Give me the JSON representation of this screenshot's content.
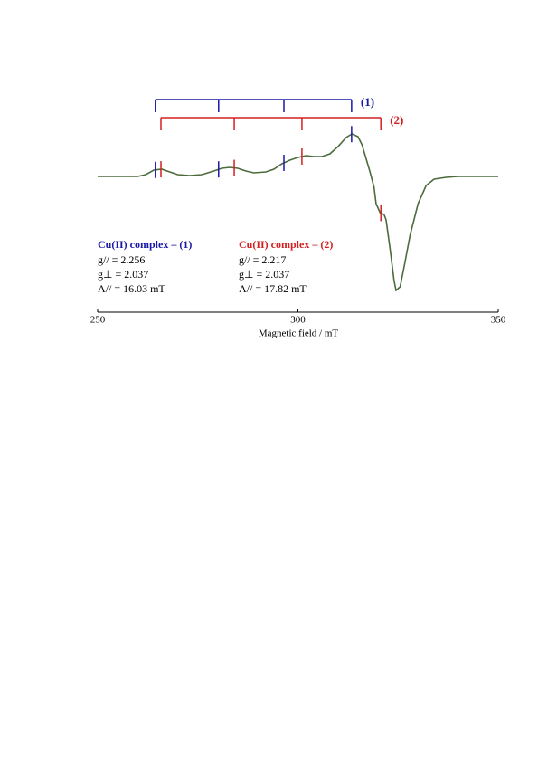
{
  "chart_data": {
    "type": "line",
    "xlabel": "Magnetic field / mT",
    "xlim": [
      250,
      350
    ],
    "xticks": [
      250,
      300,
      350
    ],
    "ylim": [
      -135,
      60
    ],
    "color": "#4b6b3c",
    "x": [
      250,
      255,
      260,
      262,
      264,
      266,
      268,
      270,
      273,
      276,
      279,
      281,
      283,
      285,
      287,
      289,
      292,
      294,
      296,
      298,
      300,
      302,
      304,
      306,
      308,
      310,
      312,
      313.5,
      315,
      316,
      317,
      318,
      319,
      319.5,
      320.5,
      321.5,
      322,
      323,
      324,
      324.5,
      325.5,
      326.5,
      328,
      330,
      332,
      334,
      337,
      340,
      345,
      350
    ],
    "values": [
      0,
      0,
      0,
      2,
      7,
      8,
      5,
      2,
      1,
      2,
      6,
      9,
      10,
      9,
      6,
      4,
      5,
      8,
      14,
      18,
      21,
      23,
      22,
      22,
      25,
      33,
      43,
      47,
      44,
      35,
      20,
      5,
      -12,
      -30,
      -40,
      -42,
      -48,
      -80,
      -115,
      -126,
      -122,
      -100,
      -65,
      -30,
      -10,
      -3,
      -1,
      0,
      0,
      0
    ],
    "markers": [
      {
        "name": "(1)",
        "color": "#1a1aa6",
        "positions": [
          264.4,
          280.2,
          296.5,
          313.4
        ]
      },
      {
        "name": "(2)",
        "color": "#d42020",
        "positions": [
          265.8,
          284.1,
          301.0,
          320.7
        ]
      }
    ],
    "annotations": [
      {
        "title": "Cu(II) complex – (1)",
        "color": "#1a1aa6",
        "lines": [
          "g// = 2.256",
          "g⊥ = 2.037",
          "A// = 16.03 mT"
        ]
      },
      {
        "title": "Cu(II) complex – (2)",
        "color": "#d42020",
        "lines": [
          "g// = 2.217",
          "g⊥ = 2.037",
          "A// = 17.82 mT"
        ]
      }
    ]
  }
}
